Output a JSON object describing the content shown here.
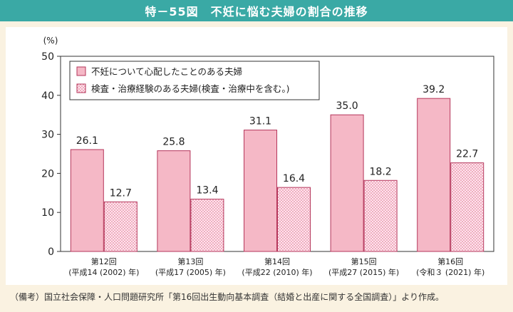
{
  "title": "特－55図　不妊に悩む夫婦の割合の推移",
  "note": "（備考）国立社会保障・人口問題研究所「第16回出生動向基本調査（結婚と出産に関する全国調査）」より作成。",
  "colors": {
    "title_bg": "#3aa9a5",
    "page_bg": "#faf2e1",
    "series1_fill": "#f5b8c6",
    "series2_fill": "#fde6ee",
    "series2_dot": "#e8849e",
    "bar_stroke": "#b5365b"
  },
  "chart_data": {
    "type": "bar",
    "ylabel": "(%)",
    "ylim": [
      0,
      50
    ],
    "yticks": [
      0,
      10,
      20,
      30,
      40,
      50
    ],
    "categories": [
      {
        "line1": "第12回",
        "line2": "(平成14 (2002) 年)"
      },
      {
        "line1": "第13回",
        "line2": "(平成17 (2005) 年)"
      },
      {
        "line1": "第14回",
        "line2": "(平成22 (2010) 年)"
      },
      {
        "line1": "第15回",
        "line2": "(平成27 (2015) 年)"
      },
      {
        "line1": "第16回",
        "line2": "(令和３ (2021) 年)"
      }
    ],
    "series": [
      {
        "name": "不妊について心配したことのある夫婦",
        "values": [
          26.1,
          25.8,
          31.1,
          35.0,
          39.2
        ],
        "labels": [
          "26.1",
          "25.8",
          "31.1",
          "35.0",
          "39.2"
        ]
      },
      {
        "name": "検査・治療経験のある夫婦(検査・治療中を含む。)",
        "values": [
          12.7,
          13.4,
          16.4,
          18.2,
          22.7
        ],
        "labels": [
          "12.7",
          "13.4",
          "16.4",
          "18.2",
          "22.7"
        ]
      }
    ],
    "legend_position": "top-left",
    "grid": false
  }
}
